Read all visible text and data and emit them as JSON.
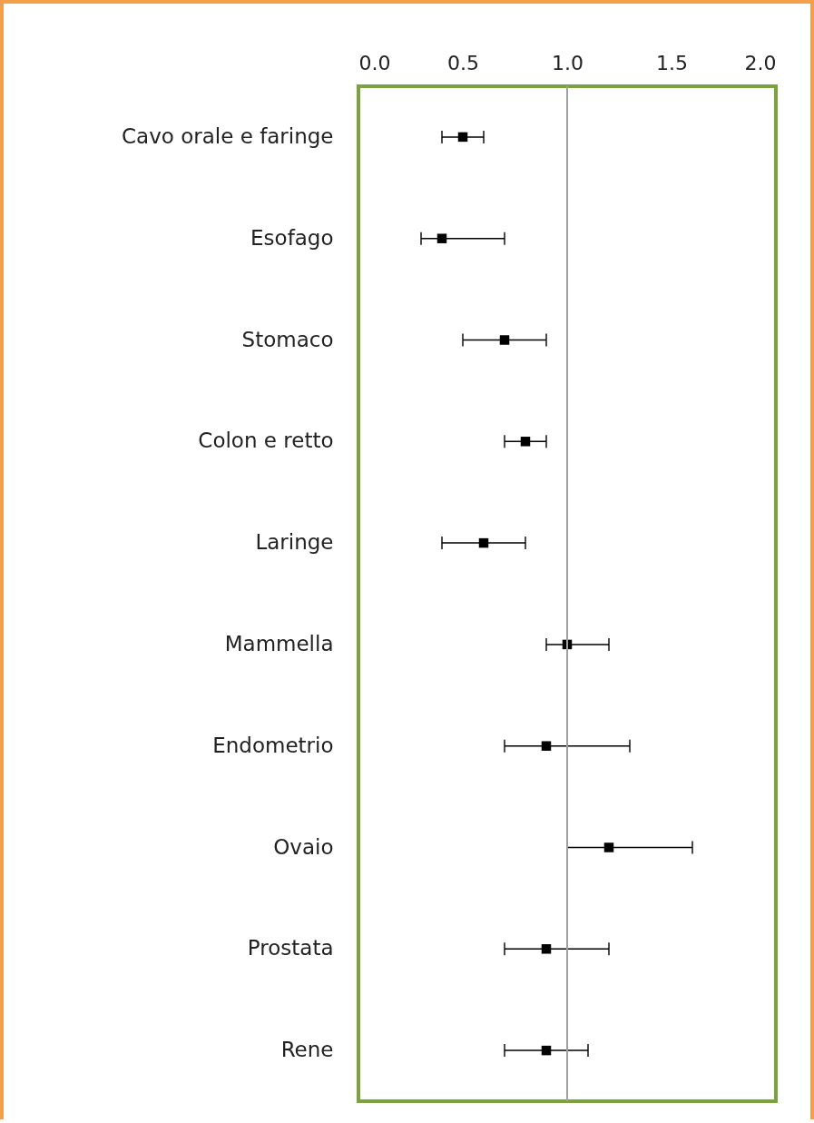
{
  "chart_data": {
    "type": "scatter",
    "orientation": "horizontal",
    "marker": "square",
    "grid": false,
    "categories": [
      "Cavo orale e faringe",
      "Esofago",
      "Stomaco",
      "Colon e retto",
      "Laringe",
      "Mammella",
      "Endometrio ",
      "Ovaio",
      "Prostata ",
      "Rene"
    ],
    "values": [
      0.5,
      0.4,
      0.7,
      0.8,
      0.6,
      1.0,
      0.9,
      1.2,
      0.9,
      0.9
    ],
    "errors": [
      [
        0.4,
        0.6
      ],
      [
        0.3,
        0.7
      ],
      [
        0.5,
        0.9
      ],
      [
        0.7,
        0.9
      ],
      [
        0.4,
        0.8
      ],
      [
        0.9,
        1.2
      ],
      [
        0.7,
        1.3
      ],
      [
        1.0,
        1.6
      ],
      [
        0.7,
        1.2
      ],
      [
        0.7,
        1.1
      ]
    ],
    "color": "#000000",
    "xlim": [
      0,
      2
    ],
    "xticks": [
      {
        "value": 0,
        "label": "0.0"
      },
      0.5,
      {
        "value": 1,
        "label": "1.0"
      },
      1.5,
      {
        "value": 2,
        "label": "2.0"
      }
    ],
    "ref_lines": [
      {
        "axis": "x",
        "value": 1,
        "label": null,
        "color": "#a0a0a0"
      }
    ]
  }
}
